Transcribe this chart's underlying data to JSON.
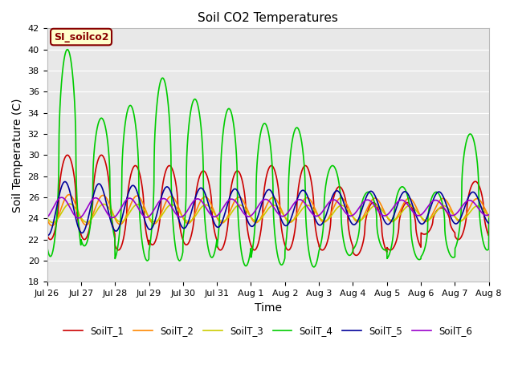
{
  "title": "Soil CO2 Temperatures",
  "xlabel": "Time",
  "ylabel": "Soil Temperature (C)",
  "ylim": [
    18,
    42
  ],
  "xlim": [
    0,
    13
  ],
  "yticks": [
    18,
    20,
    22,
    24,
    26,
    28,
    30,
    32,
    34,
    36,
    38,
    40,
    42
  ],
  "xtick_labels": [
    "Jul 26",
    "Jul 27",
    "Jul 28",
    "Jul 29",
    "Jul 30",
    "Jul 31",
    "Aug 1",
    "Aug 2",
    "Aug 3",
    "Aug 4",
    "Aug 5",
    "Aug 6",
    "Aug 7",
    "Aug 8"
  ],
  "xtick_positions": [
    0,
    1,
    2,
    3,
    4,
    5,
    6,
    7,
    8,
    9,
    10,
    11,
    12,
    13
  ],
  "background_color": "#e8e8e8",
  "figure_color": "#ffffff",
  "series": [
    {
      "name": "SoilT_1",
      "color": "#cc0000"
    },
    {
      "name": "SoilT_2",
      "color": "#ff8800"
    },
    {
      "name": "SoilT_3",
      "color": "#cccc00"
    },
    {
      "name": "SoilT_4",
      "color": "#00cc00"
    },
    {
      "name": "SoilT_5",
      "color": "#000099"
    },
    {
      "name": "SoilT_6",
      "color": "#9900cc"
    }
  ],
  "annotation_text": "SI_soilco2",
  "annotation_bg": "#ffffcc",
  "annotation_border": "#880000",
  "title_fontsize": 11,
  "axis_label_fontsize": 10
}
